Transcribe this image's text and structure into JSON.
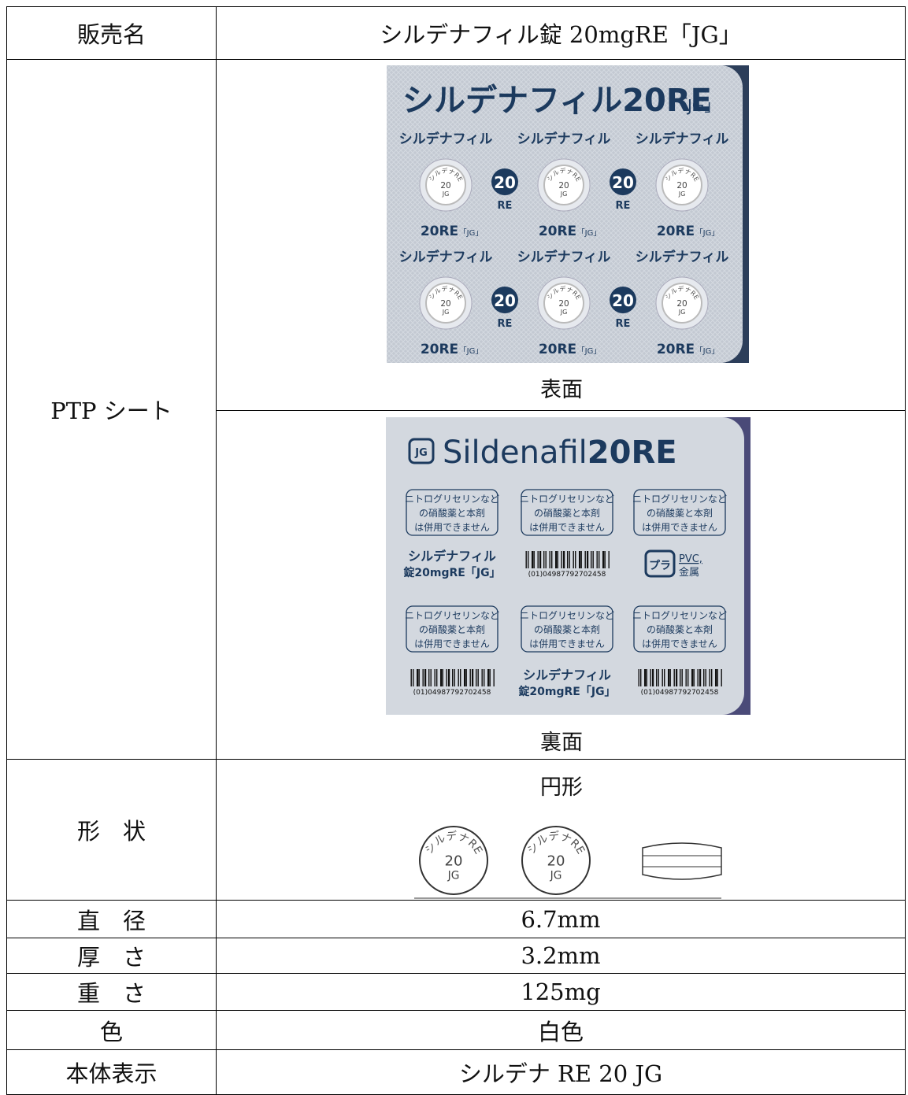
{
  "table": {
    "rows": [
      {
        "label": "販売名",
        "value": "シルデナフィル錠 20mgRE「JG」"
      },
      {
        "label": "PTP シート",
        "front": {
          "caption": "表面",
          "title": "シルデナフィル20RE",
          "title_suffix": "「JG」",
          "pills": [
            {
              "name": "シルデナフィル",
              "code": "20RE",
              "code_suffix": "「JG」",
              "imprint": [
                "シルデナRE",
                "20",
                "JG"
              ]
            },
            {
              "name": "シルデナフィル",
              "code": "20RE",
              "code_suffix": "「JG」",
              "imprint": [
                "シルデナRE",
                "20",
                "JG"
              ]
            },
            {
              "name": "シルデナフィル",
              "code": "20RE",
              "code_suffix": "「JG」",
              "imprint": [
                "シルデナRE",
                "20",
                "JG"
              ]
            },
            {
              "name": "シルデナフィル",
              "code": "20RE",
              "code_suffix": "「JG」",
              "imprint": [
                "シルデナRE",
                "20",
                "JG"
              ]
            },
            {
              "name": "シルデナフィル",
              "code": "20RE",
              "code_suffix": "「JG」",
              "imprint": [
                "シルデナRE",
                "20",
                "JG"
              ]
            },
            {
              "name": "シルデナフィル",
              "code": "20RE",
              "code_suffix": "「JG」",
              "imprint": [
                "シルデナRE",
                "20",
                "JG"
              ]
            }
          ],
          "marks": [
            {
              "num": "20",
              "sub": "RE"
            },
            {
              "num": "20",
              "sub": "RE"
            },
            {
              "num": "20",
              "sub": "RE"
            },
            {
              "num": "20",
              "sub": "RE"
            }
          ]
        },
        "back": {
          "caption": "裏面",
          "logo": "JG",
          "title": "Sildenafil",
          "title_bold": "20RE",
          "warnings": [
            [
              "ニトログリセリンなど",
              "の硝酸薬と本剤",
              "は併用できません"
            ],
            [
              "ニトログリセリンなど",
              "の硝酸薬と本剤",
              "は併用できません"
            ],
            [
              "ニトログリセリンなど",
              "の硝酸薬と本剤",
              "は併用できません"
            ],
            [
              "ニトログリセリンなど",
              "の硝酸薬と本剤",
              "は併用できません"
            ],
            [
              "ニトログリセリンなど",
              "の硝酸薬と本剤",
              "は併用できません"
            ],
            [
              "ニトログリセリンなど",
              "の硝酸薬と本剤",
              "は併用できません"
            ]
          ],
          "labels": [
            {
              "name": "シルデナフィル",
              "strength": "錠20mgRE「JG」"
            },
            {
              "name": "シルデナフィル",
              "strength": "錠20mgRE「JG」"
            }
          ],
          "barcodes": [
            "(01)04987792702458",
            "(01)04987792702458",
            "(01)04987792702458"
          ],
          "recycle": {
            "mark": "プラ",
            "material": "PVC,",
            "material2": "金属"
          }
        }
      },
      {
        "label": "形　状",
        "value": "円形",
        "imprint": [
          [
            "シルデナRE",
            "20",
            "JG"
          ],
          [
            "シルデナRE",
            "20",
            "JG"
          ]
        ]
      },
      {
        "label": "直　径",
        "value": "6.7mm"
      },
      {
        "label": "厚　さ",
        "value": "3.2mm"
      },
      {
        "label": "重　さ",
        "value": "125mg"
      },
      {
        "label": "色",
        "value": "白色"
      },
      {
        "label": "本体表示",
        "value": "シルデナ RE 20 JG"
      }
    ]
  }
}
